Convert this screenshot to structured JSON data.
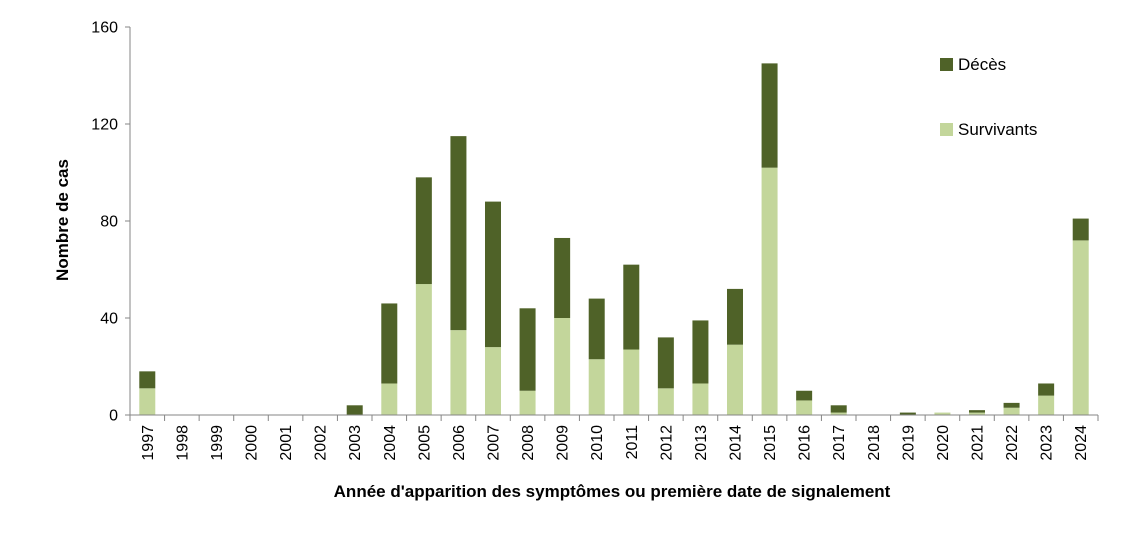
{
  "chart_data": {
    "type": "bar",
    "stacked": true,
    "title": "",
    "xlabel": "Année d'apparition des symptômes ou première date de signalement",
    "ylabel": "Nombre de cas",
    "ylim": [
      0,
      160
    ],
    "yticks": [
      "0",
      "40",
      "80",
      "120",
      "160"
    ],
    "grid": false,
    "legend_position": "top-right",
    "categories": [
      "1997",
      "1998",
      "1999",
      "2000",
      "2001",
      "2002",
      "2003",
      "2004",
      "2005",
      "2006",
      "2007",
      "2008",
      "2009",
      "2010",
      "2011",
      "2012",
      "2013",
      "2014",
      "2015",
      "2016",
      "2017",
      "2018",
      "2019",
      "2020",
      "2021",
      "2022",
      "2023",
      "2024"
    ],
    "series": [
      {
        "name": "Survivants",
        "color": "#c3d69b",
        "values": [
          11,
          0,
          0,
          0,
          0,
          0,
          0,
          13,
          54,
          35,
          28,
          10,
          40,
          23,
          27,
          11,
          13,
          29,
          102,
          6,
          1,
          0,
          0,
          1,
          1,
          3,
          8,
          72
        ]
      },
      {
        "name": "Décès",
        "color": "#4f6228",
        "values": [
          7,
          0,
          0,
          0,
          0,
          0,
          4,
          33,
          44,
          80,
          60,
          34,
          33,
          25,
          35,
          21,
          26,
          23,
          43,
          4,
          3,
          0,
          1,
          0,
          1,
          2,
          5,
          9
        ]
      }
    ]
  }
}
